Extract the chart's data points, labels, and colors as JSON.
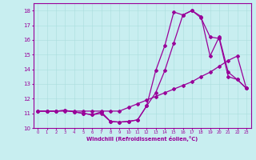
{
  "bg_color": "#c8eef0",
  "line_color": "#990099",
  "xlim": [
    -0.5,
    23.5
  ],
  "ylim": [
    10,
    18.5
  ],
  "yticks": [
    10,
    11,
    12,
    13,
    14,
    15,
    16,
    17,
    18
  ],
  "xticks": [
    0,
    1,
    2,
    3,
    4,
    5,
    6,
    7,
    8,
    9,
    10,
    11,
    12,
    13,
    14,
    15,
    16,
    17,
    18,
    19,
    20,
    21,
    22,
    23
  ],
  "xlabel": "Windchill (Refroidissement éolien,°C)",
  "line1_x": [
    0,
    1,
    2,
    3,
    4,
    5,
    6,
    7,
    8,
    9,
    10,
    11,
    12,
    13,
    14,
    15,
    16,
    17,
    18,
    19,
    20,
    21,
    22,
    23
  ],
  "line1_y": [
    11.15,
    11.15,
    11.15,
    11.15,
    11.15,
    11.15,
    11.15,
    11.15,
    11.15,
    11.15,
    11.4,
    11.65,
    11.9,
    12.15,
    12.4,
    12.65,
    12.9,
    13.15,
    13.5,
    13.8,
    14.2,
    14.6,
    14.9,
    12.7
  ],
  "line2_x": [
    0,
    1,
    2,
    3,
    4,
    5,
    6,
    7,
    8,
    9,
    10,
    11,
    12,
    13,
    14,
    15,
    16,
    17,
    18,
    19,
    20,
    21,
    22,
    23
  ],
  "line2_y": [
    11.15,
    11.15,
    11.15,
    11.2,
    11.1,
    11.0,
    10.9,
    11.1,
    10.45,
    10.4,
    10.45,
    10.55,
    11.5,
    13.9,
    15.6,
    17.9,
    17.7,
    18.0,
    17.6,
    14.9,
    16.2,
    13.8,
    13.3,
    12.7
  ],
  "line3_x": [
    0,
    1,
    2,
    3,
    4,
    5,
    6,
    7,
    8,
    9,
    10,
    11,
    12,
    13,
    14,
    15,
    16,
    17,
    18,
    19,
    20,
    21,
    22,
    23
  ],
  "line3_y": [
    11.15,
    11.15,
    11.15,
    11.2,
    11.1,
    11.0,
    10.9,
    11.0,
    10.45,
    10.4,
    10.45,
    10.55,
    11.5,
    12.4,
    13.9,
    15.8,
    17.7,
    18.0,
    17.5,
    16.2,
    16.1,
    13.5,
    13.3,
    12.7
  ]
}
